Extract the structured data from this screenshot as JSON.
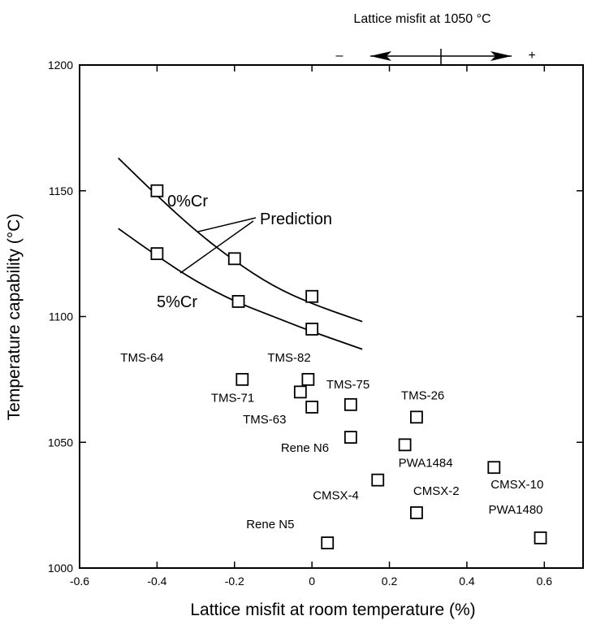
{
  "chart_data": {
    "type": "scatter",
    "xlabel": "Lattice misfit at room temperature (%)",
    "ylabel": "Temperature capability (°C)",
    "xlim": [
      -0.6,
      0.7
    ],
    "ylim": [
      1000,
      1200
    ],
    "x_ticks": [
      -0.6,
      -0.4,
      -0.2,
      0.0,
      0.2,
      0.4,
      0.6
    ],
    "x_tick_labels": [
      "-0.6",
      "-0.4",
      "-0.2",
      "0",
      "0.2",
      "0.4",
      "0.6"
    ],
    "y_ticks": [
      1000,
      1050,
      1100,
      1150,
      1200
    ],
    "y_tick_labels": [
      "1000",
      "1050",
      "1100",
      "1150",
      "1200"
    ],
    "top_axis": {
      "title": "Lattice misfit at 1050 °C",
      "minus": "–",
      "plus": "+"
    },
    "prediction_label": "Prediction",
    "prediction_curves": [
      {
        "name": "0%Cr",
        "points": [
          [
            -0.5,
            1163
          ],
          [
            -0.4,
            1148
          ],
          [
            -0.3,
            1134
          ],
          [
            -0.2,
            1122
          ],
          [
            -0.1,
            1112
          ],
          [
            0.0,
            1105
          ],
          [
            0.13,
            1098
          ]
        ]
      },
      {
        "name": "5%Cr",
        "points": [
          [
            -0.5,
            1135
          ],
          [
            -0.4,
            1124
          ],
          [
            -0.3,
            1114
          ],
          [
            -0.2,
            1106
          ],
          [
            -0.1,
            1100
          ],
          [
            0.0,
            1094
          ],
          [
            0.13,
            1087
          ]
        ]
      }
    ],
    "series": [
      {
        "name": "Prediction points",
        "points": [
          {
            "x": -0.4,
            "y": 1150,
            "label": ""
          },
          {
            "x": -0.4,
            "y": 1125,
            "label": ""
          },
          {
            "x": -0.2,
            "y": 1123,
            "label": ""
          },
          {
            "x": -0.19,
            "y": 1106,
            "label": ""
          },
          {
            "x": 0.0,
            "y": 1108,
            "label": ""
          },
          {
            "x": 0.0,
            "y": 1095,
            "label": ""
          }
        ]
      },
      {
        "name": "Alloys",
        "points": [
          {
            "x": -0.18,
            "y": 1075,
            "label": "TMS-64"
          },
          {
            "x": -0.01,
            "y": 1075,
            "label": "TMS-82"
          },
          {
            "x": -0.03,
            "y": 1070,
            "label": "TMS-71"
          },
          {
            "x": 0.0,
            "y": 1064,
            "label": "TMS-63"
          },
          {
            "x": 0.1,
            "y": 1065,
            "label": "TMS-75"
          },
          {
            "x": 0.27,
            "y": 1060,
            "label": "TMS-26"
          },
          {
            "x": 0.1,
            "y": 1052,
            "label": "Rene N6"
          },
          {
            "x": 0.24,
            "y": 1049,
            "label": "PWA1484"
          },
          {
            "x": 0.47,
            "y": 1040,
            "label": "CMSX-10"
          },
          {
            "x": 0.17,
            "y": 1035,
            "label": "CMSX-4"
          },
          {
            "x": 0.27,
            "y": 1022,
            "label": "CMSX-2"
          },
          {
            "x": 0.59,
            "y": 1012,
            "label": "PWA1480"
          },
          {
            "x": 0.04,
            "y": 1010,
            "label": "Rene N5"
          }
        ]
      }
    ]
  }
}
